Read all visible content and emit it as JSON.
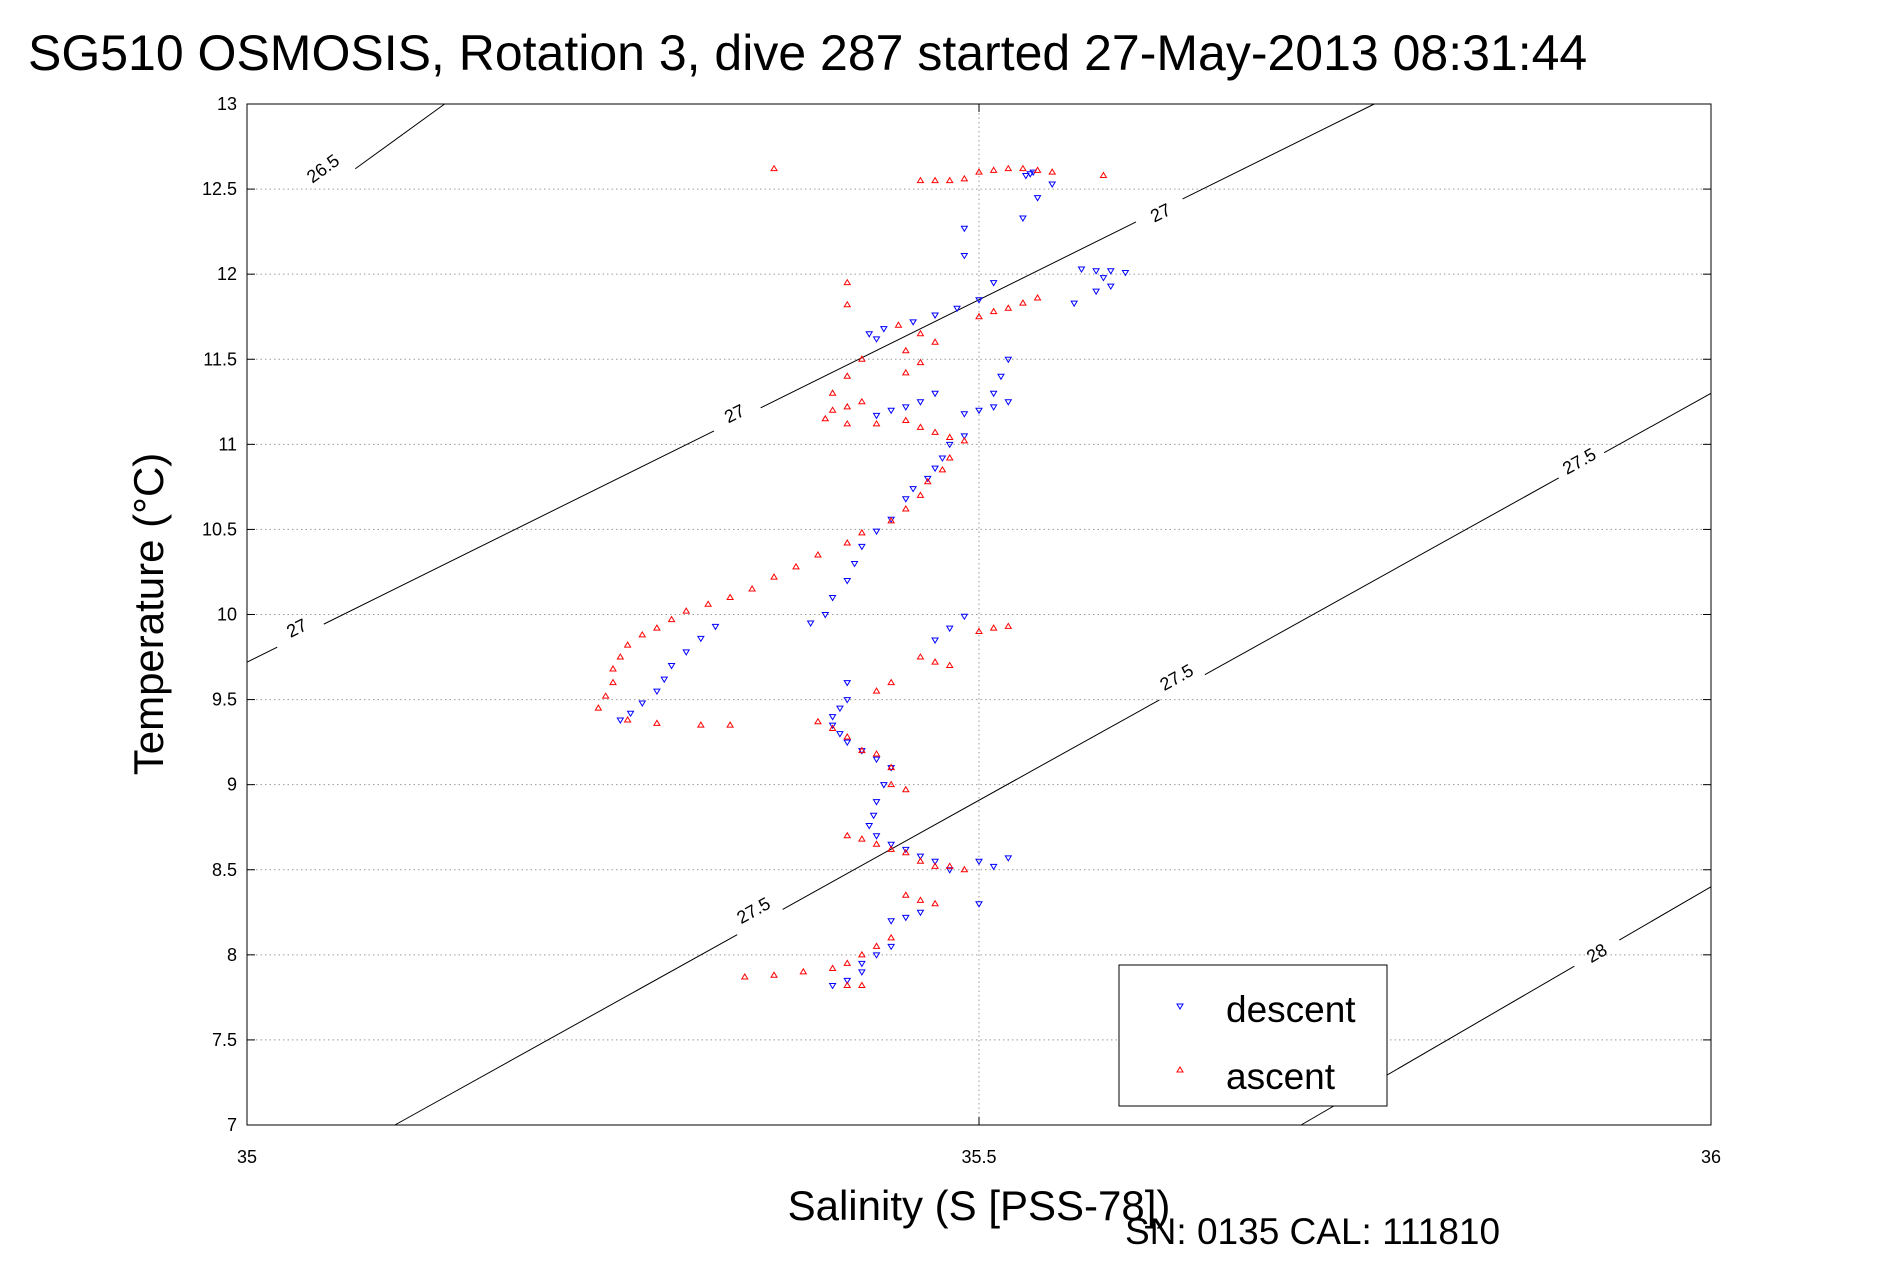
{
  "chart_data": {
    "type": "scatter",
    "title": "SG510 OSMOSIS, Rotation 3, dive 287 started 27-May-2013 08:31:44",
    "xlabel": "Salinity (S [PSS-78])",
    "ylabel": "Temperature (°C)",
    "xlim": [
      35,
      36
    ],
    "ylim": [
      7,
      13
    ],
    "x_ticks": [
      "35",
      "35.5",
      "36"
    ],
    "y_ticks": [
      "7",
      "7.5",
      "8",
      "8.5",
      "9",
      "9.5",
      "10",
      "10.5",
      "11",
      "11.5",
      "12",
      "12.5",
      "13"
    ],
    "grid": true,
    "legend_position": "bottom-right",
    "footer_text": "SN: 0135  CAL: 111810",
    "density_contours": [
      {
        "points": [
          [
            35.05,
            12.47
          ],
          [
            35.135,
            13.0
          ]
        ],
        "labels": [
          {
            "text": "26.5",
            "x": 35.052,
            "y": 12.62
          }
        ]
      },
      {
        "points": [
          [
            35.0,
            9.72
          ],
          [
            35.77,
            13.0
          ]
        ],
        "labels": [
          {
            "text": "27",
            "x": 35.034,
            "y": 9.92
          },
          {
            "text": "27",
            "x": 35.333,
            "y": 11.18
          },
          {
            "text": "27",
            "x": 35.624,
            "y": 12.36
          }
        ]
      },
      {
        "points": [
          [
            35.101,
            7.0
          ],
          [
            36.0,
            11.3
          ]
        ],
        "labels": [
          {
            "text": "27.5",
            "x": 35.346,
            "y": 8.26
          },
          {
            "text": "27.5",
            "x": 35.635,
            "y": 9.63
          },
          {
            "text": "27.5",
            "x": 35.91,
            "y": 10.9
          }
        ]
      },
      {
        "points": [
          [
            35.72,
            7.0
          ],
          [
            36.0,
            8.4
          ]
        ],
        "labels": [
          {
            "text": "28",
            "x": 35.922,
            "y": 8.01
          }
        ]
      }
    ],
    "series": [
      {
        "name": "descent",
        "color": "#0000ff",
        "marker": "triangle-down",
        "points": [
          [
            35.537,
            12.6
          ],
          [
            35.535,
            12.59
          ],
          [
            35.532,
            12.58
          ],
          [
            35.55,
            12.53
          ],
          [
            35.54,
            12.45
          ],
          [
            35.53,
            12.33
          ],
          [
            35.49,
            12.27
          ],
          [
            35.49,
            12.11
          ],
          [
            35.57,
            12.03
          ],
          [
            35.58,
            12.02
          ],
          [
            35.59,
            12.02
          ],
          [
            35.6,
            12.01
          ],
          [
            35.585,
            11.98
          ],
          [
            35.59,
            11.93
          ],
          [
            35.58,
            11.9
          ],
          [
            35.565,
            11.83
          ],
          [
            35.51,
            11.95
          ],
          [
            35.5,
            11.85
          ],
          [
            35.485,
            11.8
          ],
          [
            35.47,
            11.76
          ],
          [
            35.455,
            11.72
          ],
          [
            35.435,
            11.68
          ],
          [
            35.425,
            11.65
          ],
          [
            35.43,
            11.62
          ],
          [
            35.52,
            11.5
          ],
          [
            35.515,
            11.4
          ],
          [
            35.51,
            11.3
          ],
          [
            35.52,
            11.25
          ],
          [
            35.51,
            11.22
          ],
          [
            35.5,
            11.2
          ],
          [
            35.49,
            11.18
          ],
          [
            35.47,
            11.3
          ],
          [
            35.46,
            11.25
          ],
          [
            35.45,
            11.22
          ],
          [
            35.44,
            11.2
          ],
          [
            35.43,
            11.17
          ],
          [
            35.49,
            11.05
          ],
          [
            35.48,
            11.0
          ],
          [
            35.475,
            10.92
          ],
          [
            35.47,
            10.86
          ],
          [
            35.465,
            10.8
          ],
          [
            35.455,
            10.74
          ],
          [
            35.45,
            10.68
          ],
          [
            35.44,
            10.56
          ],
          [
            35.43,
            10.49
          ],
          [
            35.42,
            10.4
          ],
          [
            35.415,
            10.3
          ],
          [
            35.41,
            10.2
          ],
          [
            35.4,
            10.1
          ],
          [
            35.395,
            10.0
          ],
          [
            35.385,
            9.95
          ],
          [
            35.32,
            9.93
          ],
          [
            35.31,
            9.86
          ],
          [
            35.3,
            9.78
          ],
          [
            35.29,
            9.7
          ],
          [
            35.285,
            9.62
          ],
          [
            35.28,
            9.55
          ],
          [
            35.27,
            9.48
          ],
          [
            35.262,
            9.42
          ],
          [
            35.255,
            9.38
          ],
          [
            35.49,
            9.99
          ],
          [
            35.48,
            9.92
          ],
          [
            35.47,
            9.85
          ],
          [
            35.41,
            9.6
          ],
          [
            35.41,
            9.5
          ],
          [
            35.405,
            9.45
          ],
          [
            35.4,
            9.4
          ],
          [
            35.4,
            9.35
          ],
          [
            35.405,
            9.3
          ],
          [
            35.41,
            9.25
          ],
          [
            35.42,
            9.2
          ],
          [
            35.43,
            9.15
          ],
          [
            35.44,
            9.1
          ],
          [
            35.435,
            9.0
          ],
          [
            35.43,
            8.9
          ],
          [
            35.428,
            8.82
          ],
          [
            35.425,
            8.76
          ],
          [
            35.43,
            8.7
          ],
          [
            35.44,
            8.65
          ],
          [
            35.45,
            8.62
          ],
          [
            35.46,
            8.58
          ],
          [
            35.47,
            8.55
          ],
          [
            35.48,
            8.5
          ],
          [
            35.5,
            8.55
          ],
          [
            35.51,
            8.52
          ],
          [
            35.52,
            8.57
          ],
          [
            35.5,
            8.3
          ],
          [
            35.44,
            8.2
          ],
          [
            35.45,
            8.22
          ],
          [
            35.46,
            8.25
          ],
          [
            35.44,
            8.05
          ],
          [
            35.43,
            8.0
          ],
          [
            35.42,
            7.95
          ],
          [
            35.42,
            7.9
          ],
          [
            35.41,
            7.85
          ],
          [
            35.4,
            7.82
          ]
        ]
      },
      {
        "name": "ascent",
        "color": "#ff0000",
        "marker": "triangle-up",
        "points": [
          [
            35.36,
            12.62
          ],
          [
            35.585,
            12.58
          ],
          [
            35.5,
            12.6
          ],
          [
            35.51,
            12.61
          ],
          [
            35.52,
            12.62
          ],
          [
            35.53,
            12.62
          ],
          [
            35.54,
            12.61
          ],
          [
            35.55,
            12.6
          ],
          [
            35.46,
            12.55
          ],
          [
            35.47,
            12.55
          ],
          [
            35.48,
            12.55
          ],
          [
            35.49,
            12.56
          ],
          [
            35.41,
            11.95
          ],
          [
            35.41,
            11.82
          ],
          [
            35.5,
            11.75
          ],
          [
            35.51,
            11.78
          ],
          [
            35.52,
            11.8
          ],
          [
            35.53,
            11.83
          ],
          [
            35.54,
            11.86
          ],
          [
            35.445,
            11.7
          ],
          [
            35.46,
            11.65
          ],
          [
            35.47,
            11.6
          ],
          [
            35.45,
            11.55
          ],
          [
            35.46,
            11.48
          ],
          [
            35.45,
            11.42
          ],
          [
            35.42,
            11.5
          ],
          [
            35.41,
            11.4
          ],
          [
            35.4,
            11.3
          ],
          [
            35.42,
            11.25
          ],
          [
            35.41,
            11.22
          ],
          [
            35.4,
            11.2
          ],
          [
            35.395,
            11.15
          ],
          [
            35.41,
            11.12
          ],
          [
            35.43,
            11.12
          ],
          [
            35.45,
            11.14
          ],
          [
            35.46,
            11.1
          ],
          [
            35.47,
            11.07
          ],
          [
            35.48,
            11.04
          ],
          [
            35.49,
            11.02
          ],
          [
            35.48,
            10.92
          ],
          [
            35.475,
            10.85
          ],
          [
            35.465,
            10.78
          ],
          [
            35.46,
            10.7
          ],
          [
            35.45,
            10.62
          ],
          [
            35.44,
            10.55
          ],
          [
            35.42,
            10.48
          ],
          [
            35.41,
            10.42
          ],
          [
            35.39,
            10.35
          ],
          [
            35.375,
            10.28
          ],
          [
            35.36,
            10.22
          ],
          [
            35.345,
            10.15
          ],
          [
            35.33,
            10.1
          ],
          [
            35.315,
            10.06
          ],
          [
            35.3,
            10.02
          ],
          [
            35.29,
            9.97
          ],
          [
            35.28,
            9.92
          ],
          [
            35.27,
            9.88
          ],
          [
            35.26,
            9.82
          ],
          [
            35.255,
            9.75
          ],
          [
            35.25,
            9.68
          ],
          [
            35.25,
            9.6
          ],
          [
            35.245,
            9.52
          ],
          [
            35.24,
            9.45
          ],
          [
            35.26,
            9.38
          ],
          [
            35.28,
            9.36
          ],
          [
            35.31,
            9.35
          ],
          [
            35.33,
            9.35
          ],
          [
            35.5,
            9.9
          ],
          [
            35.51,
            9.92
          ],
          [
            35.52,
            9.93
          ],
          [
            35.46,
            9.75
          ],
          [
            35.47,
            9.72
          ],
          [
            35.48,
            9.7
          ],
          [
            35.44,
            9.6
          ],
          [
            35.43,
            9.55
          ],
          [
            35.39,
            9.37
          ],
          [
            35.4,
            9.33
          ],
          [
            35.41,
            9.28
          ],
          [
            35.42,
            9.2
          ],
          [
            35.43,
            9.18
          ],
          [
            35.44,
            9.1
          ],
          [
            35.44,
            9.0
          ],
          [
            35.45,
            8.97
          ],
          [
            35.41,
            8.7
          ],
          [
            35.42,
            8.68
          ],
          [
            35.43,
            8.65
          ],
          [
            35.44,
            8.62
          ],
          [
            35.45,
            8.6
          ],
          [
            35.46,
            8.55
          ],
          [
            35.47,
            8.52
          ],
          [
            35.48,
            8.52
          ],
          [
            35.49,
            8.5
          ],
          [
            35.45,
            8.35
          ],
          [
            35.46,
            8.32
          ],
          [
            35.47,
            8.3
          ],
          [
            35.44,
            8.1
          ],
          [
            35.43,
            8.05
          ],
          [
            35.42,
            8.0
          ],
          [
            35.41,
            7.95
          ],
          [
            35.4,
            7.92
          ],
          [
            35.38,
            7.9
          ],
          [
            35.36,
            7.88
          ],
          [
            35.34,
            7.87
          ],
          [
            35.41,
            7.82
          ],
          [
            35.42,
            7.82
          ]
        ]
      }
    ]
  }
}
